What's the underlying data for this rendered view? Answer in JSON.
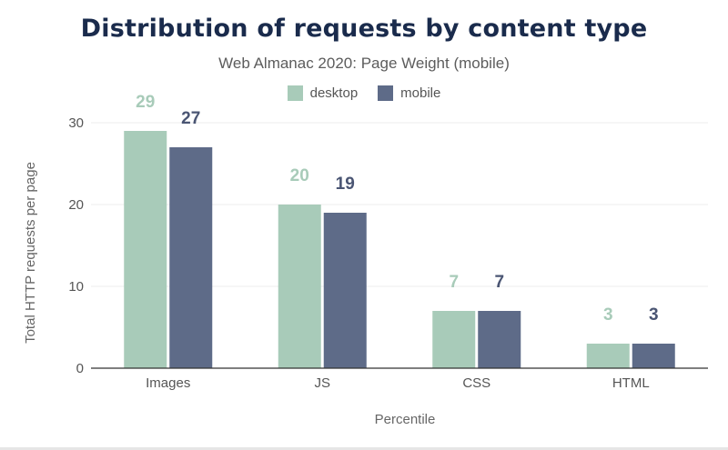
{
  "chart_data": {
    "type": "bar",
    "title": "Distribution of requests by content type",
    "subtitle": "Web Almanac 2020: Page Weight (mobile)",
    "xlabel": "Percentile",
    "ylabel": "Total HTTP requests per page",
    "categories": [
      "Images",
      "JS",
      "CSS",
      "HTML"
    ],
    "series": [
      {
        "name": "desktop",
        "values": [
          29,
          20,
          7,
          3
        ],
        "color": "#a8cbb9",
        "label_color": "#a8cbb9"
      },
      {
        "name": "mobile",
        "values": [
          27,
          19,
          7,
          3
        ],
        "color": "#5e6b88",
        "label_color": "#4a5573"
      }
    ],
    "ylim": [
      0,
      30
    ],
    "yticks": [
      0,
      10,
      20,
      30
    ],
    "grid": true,
    "legend_position": "top-center"
  }
}
